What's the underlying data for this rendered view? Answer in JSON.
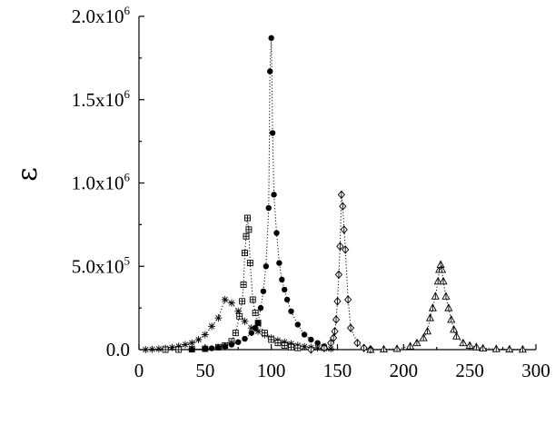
{
  "chart_data": {
    "type": "scatter",
    "title": "",
    "xlabel": "",
    "ylabel": "ε",
    "xlim": [
      0,
      300
    ],
    "ylim": [
      0,
      2000000
    ],
    "x_ticks": [
      "0",
      "50",
      "100",
      "150",
      "200",
      "250",
      "300"
    ],
    "y_ticks": [
      {
        "value": 0,
        "mantissa": "0.0",
        "exponent": ""
      },
      {
        "value": 500000,
        "mantissa": "5.0x10",
        "exponent": "5"
      },
      {
        "value": 1000000,
        "mantissa": "1.0x10",
        "exponent": "6"
      },
      {
        "value": 1500000,
        "mantissa": "1.5x10",
        "exponent": "6"
      },
      {
        "value": 2000000,
        "mantissa": "2.0x10",
        "exponent": "6"
      }
    ],
    "grid": false,
    "legend": "none",
    "series": [
      {
        "marker": "asterisk",
        "x": [
          5,
          10,
          15,
          20,
          25,
          30,
          35,
          40,
          45,
          50,
          55,
          60,
          65,
          70,
          75,
          80,
          85,
          90,
          95,
          100,
          105,
          110,
          115,
          120,
          125,
          130,
          135,
          140,
          145
        ],
        "y": [
          0,
          2000,
          4000,
          8000,
          13000,
          20000,
          30000,
          40000,
          60000,
          90000,
          140000,
          190000,
          300000,
          280000,
          230000,
          170000,
          130000,
          110000,
          90000,
          70000,
          55000,
          45000,
          35000,
          25000,
          18000,
          13000,
          10000,
          7000,
          5000
        ]
      },
      {
        "marker": "boxed-cross",
        "x": [
          20,
          30,
          40,
          50,
          60,
          65,
          70,
          73,
          76,
          78,
          79,
          80,
          81,
          82,
          83,
          84,
          86,
          88,
          90,
          95,
          100,
          105,
          110,
          115,
          120
        ],
        "y": [
          0,
          0,
          2000,
          5000,
          15000,
          25000,
          50000,
          100000,
          200000,
          290000,
          390000,
          580000,
          680000,
          790000,
          720000,
          520000,
          300000,
          220000,
          160000,
          100000,
          60000,
          40000,
          25000,
          15000,
          10000
        ]
      },
      {
        "marker": "filled-circle",
        "x": [
          40,
          50,
          55,
          60,
          65,
          70,
          75,
          80,
          85,
          88,
          90,
          92,
          94,
          96,
          98,
          99,
          100,
          101,
          102,
          104,
          106,
          108,
          110,
          112,
          115,
          120,
          125,
          130,
          135,
          140
        ],
        "y": [
          0,
          5000,
          8000,
          12000,
          20000,
          30000,
          45000,
          65000,
          100000,
          130000,
          160000,
          250000,
          350000,
          500000,
          850000,
          1670000,
          1870000,
          1300000,
          930000,
          700000,
          520000,
          420000,
          360000,
          300000,
          230000,
          150000,
          90000,
          60000,
          40000,
          20000
        ]
      },
      {
        "marker": "crossed-diamond",
        "x": [
          130,
          140,
          145,
          147,
          148,
          149,
          150,
          151,
          152,
          153,
          154,
          155,
          156,
          158,
          160,
          165,
          170,
          175
        ],
        "y": [
          0,
          10000,
          40000,
          70000,
          110000,
          180000,
          290000,
          450000,
          620000,
          930000,
          860000,
          720000,
          600000,
          300000,
          130000,
          40000,
          10000,
          2000
        ]
      },
      {
        "marker": "triangle",
        "x": [
          175,
          185,
          195,
          205,
          210,
          215,
          218,
          220,
          222,
          224,
          226,
          227,
          228,
          229,
          230,
          232,
          234,
          236,
          238,
          240,
          245,
          250,
          255,
          260,
          270,
          280,
          290
        ],
        "y": [
          0,
          2000,
          5000,
          20000,
          40000,
          70000,
          110000,
          190000,
          250000,
          320000,
          410000,
          480000,
          510000,
          480000,
          410000,
          320000,
          250000,
          180000,
          120000,
          80000,
          40000,
          25000,
          15000,
          8000,
          4000,
          2000,
          1000
        ]
      }
    ]
  }
}
